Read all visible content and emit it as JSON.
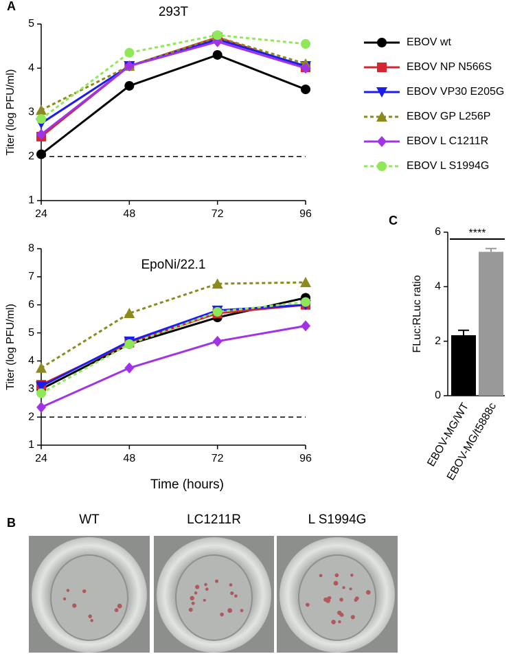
{
  "chart_data": [
    {
      "type": "line",
      "panel": "A",
      "title": "293T",
      "ylabel": "Titer (log PFU/ml)",
      "x": [
        24,
        48,
        72,
        96
      ],
      "xlim": [
        24,
        96
      ],
      "xticks": [
        24,
        48,
        72,
        96
      ],
      "ylim": [
        1,
        5
      ],
      "yticks": [
        1,
        2,
        3,
        4,
        5
      ],
      "reference_line": 2,
      "legend": "right",
      "series": [
        {
          "name": "EBOV wt",
          "color": "#000000",
          "marker": "circle",
          "linestyle": "solid",
          "values": [
            2.05,
            3.6,
            4.3,
            3.52
          ]
        },
        {
          "name": "EBOV NP N566S",
          "color": "#d3262e",
          "marker": "square",
          "linestyle": "solid",
          "values": [
            2.45,
            4.05,
            4.7,
            4.02
          ]
        },
        {
          "name": "EBOV VP30 E205G",
          "color": "#1c1cf0",
          "marker": "triangle-down",
          "linestyle": "solid",
          "values": [
            2.75,
            4.05,
            4.65,
            4.05
          ]
        },
        {
          "name": "EBOV GP L256P",
          "color": "#8a8a1e",
          "marker": "triangle",
          "linestyle": "dashed",
          "values": [
            3.05,
            4.05,
            4.7,
            4.1
          ]
        },
        {
          "name": "EBOV L C1211R",
          "color": "#a033e8",
          "marker": "diamond",
          "linestyle": "solid",
          "values": [
            2.5,
            4.05,
            4.6,
            4.0
          ]
        },
        {
          "name": "EBOV L S1994G",
          "color": "#8fe858",
          "marker": "circle",
          "linestyle": "dashed",
          "values": [
            2.85,
            4.35,
            4.75,
            4.55
          ]
        }
      ]
    },
    {
      "type": "line",
      "title": "EpoNi/22.1",
      "ylabel": "Titer (log PFU/ml)",
      "xlabel": "Time (hours)",
      "x": [
        24,
        48,
        72,
        96
      ],
      "xlim": [
        24,
        96
      ],
      "xticks": [
        24,
        48,
        72,
        96
      ],
      "ylim": [
        1,
        8
      ],
      "yticks": [
        1,
        2,
        3,
        4,
        5,
        6,
        7,
        8
      ],
      "reference_line": 2,
      "series": [
        {
          "color": "#000000",
          "marker": "circle",
          "linestyle": "solid",
          "values": [
            3.0,
            4.6,
            5.55,
            6.25
          ]
        },
        {
          "color": "#d3262e",
          "marker": "square",
          "linestyle": "solid",
          "values": [
            3.15,
            4.65,
            5.7,
            6.0
          ]
        },
        {
          "color": "#1c1cf0",
          "marker": "triangle-down",
          "linestyle": "solid",
          "values": [
            3.1,
            4.7,
            5.8,
            6.0
          ]
        },
        {
          "color": "#8a8a1e",
          "marker": "triangle",
          "linestyle": "dashed",
          "values": [
            3.75,
            5.7,
            6.75,
            6.8
          ]
        },
        {
          "color": "#a033e8",
          "marker": "diamond",
          "linestyle": "solid",
          "values": [
            2.35,
            3.75,
            4.7,
            5.25
          ]
        },
        {
          "color": "#8fe858",
          "marker": "circle",
          "linestyle": "dashed",
          "values": [
            2.85,
            4.6,
            5.75,
            6.1
          ]
        }
      ]
    },
    {
      "type": "bar",
      "panel": "C",
      "ylabel": "FLuc:RLuc ratio",
      "annotation": "****",
      "categories": [
        "EBOV-MG/WT",
        "EBOV-MG/t5888c"
      ],
      "values": [
        2.22,
        5.28
      ],
      "errors": [
        0.18,
        0.12
      ],
      "colors": [
        "#000000",
        "#999999"
      ],
      "ylim": [
        0,
        6
      ],
      "yticks": [
        0,
        2,
        4,
        6
      ]
    }
  ],
  "panel_b": {
    "panel": "B",
    "labels": [
      "WT",
      "LC1211R",
      "L S1994G"
    ]
  }
}
